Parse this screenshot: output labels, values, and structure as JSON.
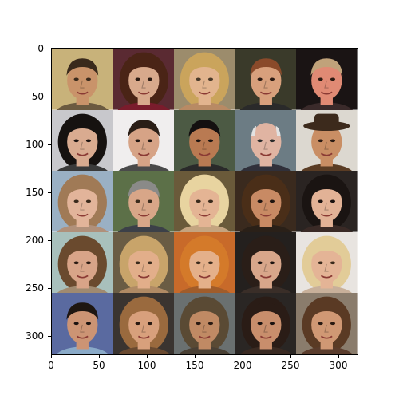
{
  "x_ticks": [
    "0",
    "50",
    "100",
    "150",
    "200",
    "250",
    "300"
  ],
  "y_ticks": [
    "0",
    "50",
    "100",
    "150",
    "200",
    "250",
    "300"
  ],
  "axis": {
    "x_range": [
      0,
      320
    ],
    "y_range": [
      320,
      0
    ],
    "origin": "upper"
  },
  "grid": {
    "rows": 5,
    "cols": 5
  },
  "faces": [
    {
      "bg": "#c8b27a",
      "skin": "#c9936a",
      "hair": "#3a2a1c",
      "eyes": "#3a2a1c",
      "cloth": "#6b5a40",
      "hair_style": "short"
    },
    {
      "bg": "#5a2a32",
      "skin": "#d8a98c",
      "hair": "#4a2416",
      "eyes": "#2a1a12",
      "cloth": "#7a1c2c",
      "hair_style": "long"
    },
    {
      "bg": "#9c8c6c",
      "skin": "#e2b48e",
      "hair": "#caa45c",
      "eyes": "#4a3a2a",
      "cloth": "#b88a64",
      "hair_style": "long"
    },
    {
      "bg": "#3a3a2a",
      "skin": "#d8a07c",
      "hair": "#8a4a2a",
      "eyes": "#2a1a12",
      "cloth": "#2a2a2a",
      "hair_style": "bob"
    },
    {
      "bg": "#1a1414",
      "skin": "#e08a74",
      "hair": "#c0a27a",
      "eyes": "#2a1a12",
      "cloth": "#3a2a2a",
      "hair_style": "short"
    },
    {
      "bg": "#c8c8cc",
      "skin": "#d9ab90",
      "hair": "#161210",
      "eyes": "#1a1210",
      "cloth": "#3a3a3a",
      "hair_style": "curly"
    },
    {
      "bg": "#f0eeee",
      "skin": "#d6a386",
      "hair": "#2a1e16",
      "eyes": "#1e1410",
      "cloth": "#4a4a4a",
      "hair_style": "short"
    },
    {
      "bg": "#4c5a44",
      "skin": "#b97a52",
      "hair": "#141010",
      "eyes": "#1a1210",
      "cloth": "#2a2a2a",
      "hair_style": "short"
    },
    {
      "bg": "#6c7c84",
      "skin": "#e0b4a2",
      "hair": "#e2e2e2",
      "eyes": "#2a2a2a",
      "cloth": "#30303a",
      "hair_style": "bald"
    },
    {
      "bg": "#dcd8d0",
      "skin": "#c98e64",
      "hair": "#3c2a1c",
      "eyes": "#2a1a12",
      "cloth": "#5a3c24",
      "hair_style": "hat"
    },
    {
      "bg": "#9ab0c4",
      "skin": "#e2b49a",
      "hair": "#a07a56",
      "eyes": "#3a2a1c",
      "cloth": "#b0907a",
      "hair_style": "curly"
    },
    {
      "bg": "#5c7048",
      "skin": "#d8a688",
      "hair": "#8a8a88",
      "eyes": "#3a2a1c",
      "cloth": "#3c4048",
      "hair_style": "short"
    },
    {
      "bg": "#6a5a3a",
      "skin": "#e4b494",
      "hair": "#e8d4a0",
      "eyes": "#3a2a1c",
      "cloth": "#c4a480",
      "hair_style": "long"
    },
    {
      "bg": "#3a2a1e",
      "skin": "#c88a64",
      "hair": "#4a2e18",
      "eyes": "#1e1410",
      "cloth": "#2a2018",
      "hair_style": "curly"
    },
    {
      "bg": "#2a2422",
      "skin": "#e2b296",
      "hair": "#1a1412",
      "eyes": "#1a1210",
      "cloth": "#3a2a26",
      "hair_style": "long"
    },
    {
      "bg": "#a8c0bc",
      "skin": "#d8a488",
      "hair": "#6a4a2e",
      "eyes": "#2a1a12",
      "cloth": "#a08a70",
      "hair_style": "side"
    },
    {
      "bg": "#6a5c44",
      "skin": "#e2ae8a",
      "hair": "#c8a46a",
      "eyes": "#3a2a1c",
      "cloth": "#b08a64",
      "hair_style": "long"
    },
    {
      "bg": "#c86a2a",
      "skin": "#e4b08a",
      "hair": "#d47a2a",
      "eyes": "#3a2a1c",
      "cloth": "#a05c2a",
      "hair_style": "long"
    },
    {
      "bg": "#24201e",
      "skin": "#d8a68a",
      "hair": "#2a1e18",
      "eyes": "#1a1210",
      "cloth": "#3a2e28",
      "hair_style": "long"
    },
    {
      "bg": "#e8e4e0",
      "skin": "#e4b496",
      "hair": "#e2cc98",
      "eyes": "#3a2a1c",
      "cloth": "#c8b09a",
      "hair_style": "long"
    },
    {
      "bg": "#5a6aa0",
      "skin": "#cc9474",
      "hair": "#1e1612",
      "eyes": "#1a1210",
      "cloth": "#8aaac8",
      "hair_style": "short"
    },
    {
      "bg": "#3a3430",
      "skin": "#d8a07c",
      "hair": "#9a6a3e",
      "eyes": "#2a1a12",
      "cloth": "#6a4a30",
      "hair_style": "long"
    },
    {
      "bg": "#6a7070",
      "skin": "#c08a64",
      "hair": "#5a4a34",
      "eyes": "#2a1a12",
      "cloth": "#4a4034",
      "hair_style": "dread"
    },
    {
      "bg": "#2a2624",
      "skin": "#c88e6c",
      "hair": "#2a1c16",
      "eyes": "#1a1210",
      "cloth": "#3a2a22",
      "hair_style": "long"
    },
    {
      "bg": "#8a7c6c",
      "skin": "#d09874",
      "hair": "#5a3a24",
      "eyes": "#2a1a12",
      "cloth": "#5a3c2c",
      "hair_style": "long"
    }
  ]
}
